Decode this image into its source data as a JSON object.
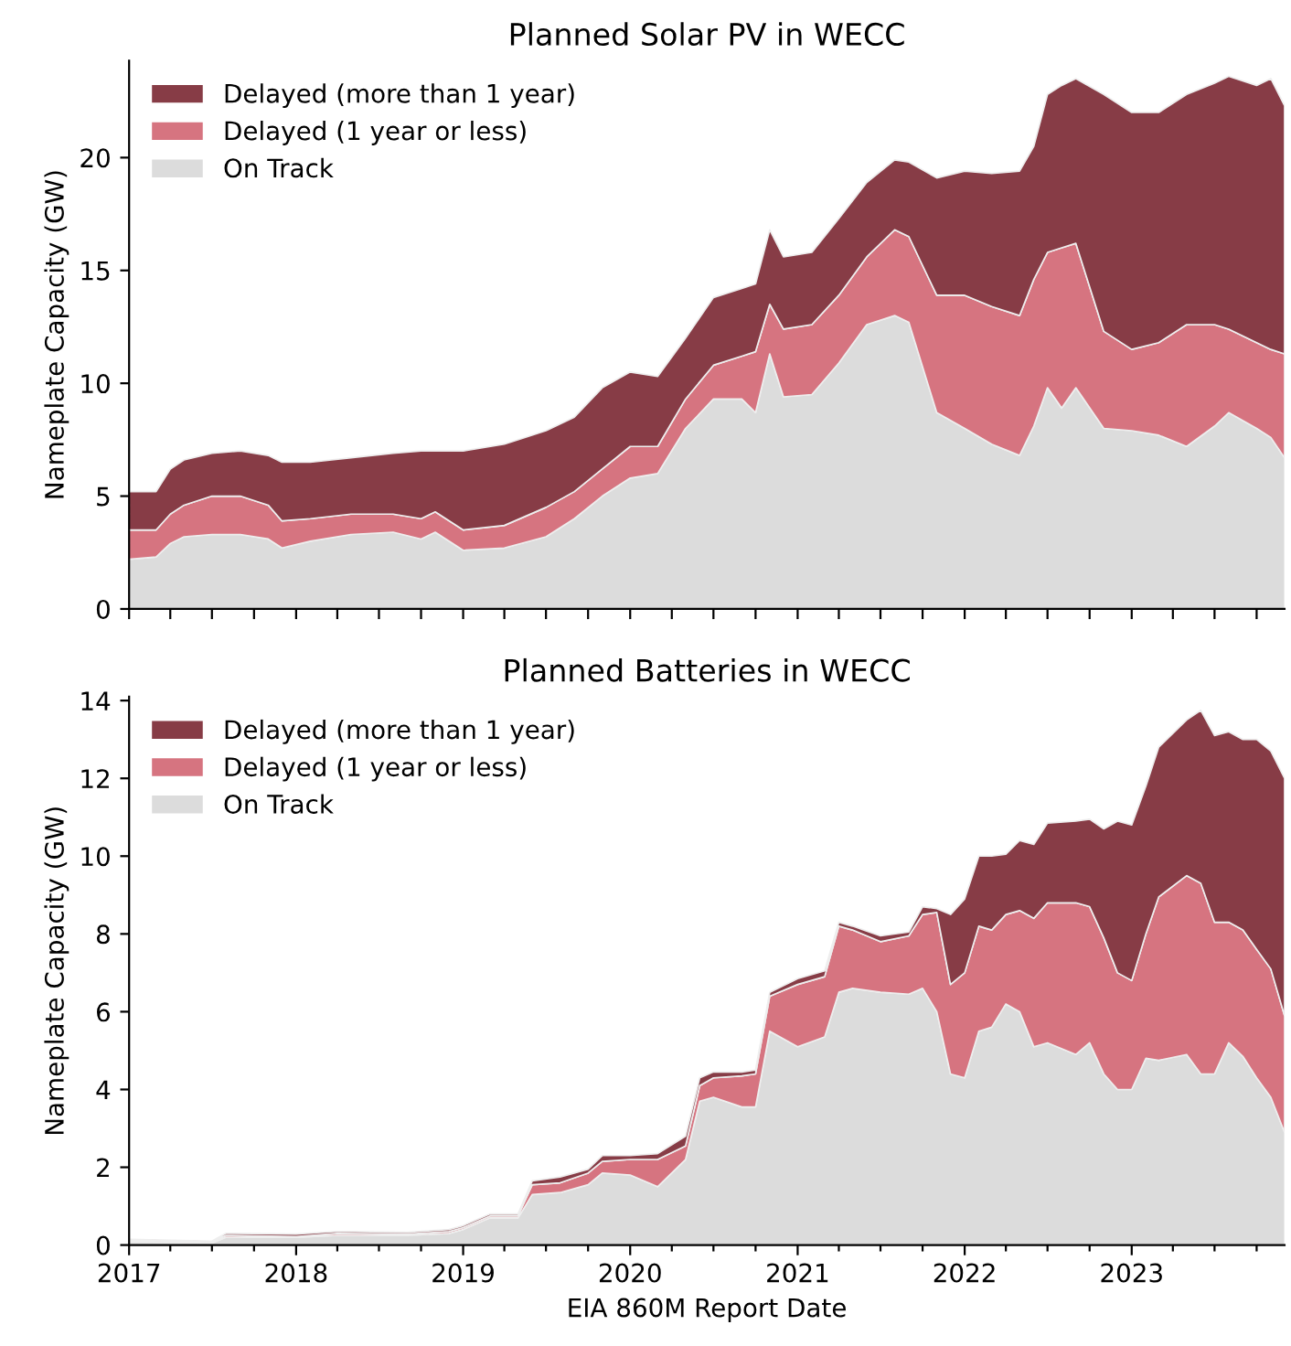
{
  "chart_data": [
    {
      "type": "area",
      "stacked": true,
      "title": "Planned Solar PV in WECC",
      "ylabel": "Nameplate Capacity (GW)",
      "legend": "top left",
      "tick_labels": "y",
      "x": [
        "2017-01",
        "2017-03",
        "2017-04",
        "2017-05",
        "2017-07",
        "2017-09",
        "2017-11",
        "2017-12",
        "2018-02",
        "2018-05",
        "2018-08",
        "2018-10",
        "2018-11",
        "2019-01",
        "2019-04",
        "2019-07",
        "2019-09",
        "2019-11",
        "2020-01",
        "2020-03",
        "2020-05",
        "2020-07",
        "2020-09",
        "2020-10",
        "2020-11",
        "2020-12",
        "2021-02",
        "2021-04",
        "2021-06",
        "2021-08",
        "2021-09",
        "2021-11",
        "2022-01",
        "2022-03",
        "2022-05",
        "2022-06",
        "2022-07",
        "2022-08",
        "2022-09",
        "2022-11",
        "2023-01",
        "2023-03",
        "2023-05",
        "2023-07",
        "2023-08",
        "2023-10",
        "2023-11",
        "2023-12"
      ],
      "series": [
        {
          "name": "On Track",
          "color": "#dcdcdc",
          "values": [
            2.2,
            2.3,
            2.9,
            3.2,
            3.3,
            3.3,
            3.1,
            2.7,
            3.0,
            3.3,
            3.4,
            3.1,
            3.4,
            2.6,
            2.7,
            3.2,
            4.0,
            5.0,
            5.8,
            6.0,
            8.0,
            9.3,
            9.3,
            8.7,
            11.3,
            9.4,
            9.5,
            10.9,
            12.6,
            13.0,
            12.7,
            8.7,
            8.0,
            7.3,
            6.8,
            8.1,
            9.8,
            8.9,
            9.8,
            8.0,
            7.9,
            7.7,
            7.2,
            8.1,
            8.7,
            8.0,
            7.6,
            6.7
          ]
        },
        {
          "name": "Delayed (1 year or less)",
          "color": "#d67480",
          "values": [
            1.3,
            1.2,
            1.3,
            1.4,
            1.7,
            1.7,
            1.5,
            1.2,
            1.0,
            0.9,
            0.8,
            0.9,
            0.9,
            0.9,
            1.0,
            1.3,
            1.2,
            1.2,
            1.4,
            1.2,
            1.3,
            1.5,
            1.9,
            2.7,
            2.2,
            3.0,
            3.1,
            3.0,
            3.0,
            3.8,
            3.8,
            5.2,
            5.9,
            6.1,
            6.2,
            6.5,
            6.0,
            7.1,
            6.4,
            4.3,
            3.6,
            4.1,
            5.4,
            4.5,
            3.7,
            3.8,
            3.9,
            4.6
          ]
        },
        {
          "name": "Delayed (more than 1 year)",
          "color": "#873c46",
          "values": [
            1.7,
            1.7,
            2.0,
            2.0,
            1.9,
            2.0,
            2.2,
            2.6,
            2.5,
            2.5,
            2.7,
            3.0,
            2.7,
            3.5,
            3.6,
            3.4,
            3.3,
            3.6,
            3.3,
            3.1,
            2.7,
            3.0,
            3.0,
            3.0,
            3.3,
            3.2,
            3.2,
            3.4,
            3.3,
            3.1,
            3.3,
            5.2,
            5.5,
            5.9,
            6.4,
            5.9,
            7.0,
            7.2,
            7.3,
            10.5,
            10.5,
            10.2,
            10.2,
            10.7,
            11.2,
            11.4,
            12.0,
            11.0
          ]
        }
      ],
      "xlim": [
        "2017-01",
        "2023-12"
      ],
      "xticks": [
        {
          "value": "2017-01",
          "label": null
        },
        {
          "value": "2017-04",
          "label": null
        },
        {
          "value": "2017-07",
          "label": null
        },
        {
          "value": "2017-10",
          "label": null
        },
        {
          "value": "2018-01",
          "label": null
        },
        {
          "value": "2018-04",
          "label": null
        },
        {
          "value": "2018-07",
          "label": null
        },
        {
          "value": "2018-10",
          "label": null
        },
        {
          "value": "2019-01",
          "label": null
        },
        {
          "value": "2019-04",
          "label": null
        },
        {
          "value": "2019-07",
          "label": null
        },
        {
          "value": "2019-10",
          "label": null
        },
        {
          "value": "2020-01",
          "label": null
        },
        {
          "value": "2020-04",
          "label": null
        },
        {
          "value": "2020-07",
          "label": null
        },
        {
          "value": "2020-10",
          "label": null
        },
        {
          "value": "2021-01",
          "label": null
        },
        {
          "value": "2021-04",
          "label": null
        },
        {
          "value": "2021-07",
          "label": null
        },
        {
          "value": "2021-10",
          "label": null
        },
        {
          "value": "2022-01",
          "label": null
        },
        {
          "value": "2022-04",
          "label": null
        },
        {
          "value": "2022-07",
          "label": null
        },
        {
          "value": "2022-10",
          "label": null
        },
        {
          "value": "2023-01",
          "label": null
        },
        {
          "value": "2023-04",
          "label": null
        },
        {
          "value": "2023-07",
          "label": null
        },
        {
          "value": "2023-10",
          "label": null
        }
      ],
      "ylim": [
        0,
        24.3
      ],
      "yticks": [
        0,
        5,
        10,
        15,
        20
      ]
    },
    {
      "type": "area",
      "stacked": true,
      "title": "Planned Batteries in WECC",
      "ylabel": "Nameplate Capacity (GW)",
      "xlabel": "EIA 860M Report Date",
      "legend": "top left",
      "x": [
        "2017-01",
        "2017-07",
        "2017-08",
        "2018-01",
        "2018-04",
        "2018-09",
        "2018-12",
        "2019-01",
        "2019-03",
        "2019-05",
        "2019-06",
        "2019-08",
        "2019-10",
        "2019-11",
        "2020-01",
        "2020-03",
        "2020-05",
        "2020-06",
        "2020-07",
        "2020-09",
        "2020-10",
        "2020-11",
        "2021-01",
        "2021-03",
        "2021-04",
        "2021-05",
        "2021-07",
        "2021-09",
        "2021-10",
        "2021-11",
        "2021-12",
        "2022-01",
        "2022-02",
        "2022-03",
        "2022-04",
        "2022-05",
        "2022-06",
        "2022-07",
        "2022-09",
        "2022-10",
        "2022-11",
        "2022-12",
        "2023-01",
        "2023-02",
        "2023-03",
        "2023-05",
        "2023-06",
        "2023-07",
        "2023-08",
        "2023-09",
        "2023-10",
        "2023-11",
        "2023-12"
      ],
      "series": [
        {
          "name": "On Track",
          "color": "#dcdcdc",
          "values": [
            0.08,
            0.05,
            0.2,
            0.2,
            0.25,
            0.25,
            0.3,
            0.4,
            0.7,
            0.7,
            1.3,
            1.35,
            1.55,
            1.85,
            1.8,
            1.5,
            2.2,
            3.7,
            3.8,
            3.55,
            3.55,
            5.5,
            5.1,
            5.35,
            6.5,
            6.6,
            6.5,
            6.45,
            6.6,
            6.0,
            4.4,
            4.3,
            5.5,
            5.6,
            6.2,
            6.0,
            5.1,
            5.2,
            4.9,
            5.2,
            4.4,
            4.0,
            4.0,
            4.8,
            4.75,
            4.9,
            4.4,
            4.4,
            5.2,
            4.85,
            4.3,
            3.8,
            2.9
          ]
        },
        {
          "name": "Delayed (1 year or less)",
          "color": "#d67480",
          "values": [
            0.04,
            0.03,
            0.05,
            0.02,
            0.05,
            0.03,
            0.05,
            0.05,
            0.05,
            0.05,
            0.25,
            0.25,
            0.3,
            0.3,
            0.4,
            0.7,
            0.35,
            0.4,
            0.5,
            0.8,
            0.85,
            0.9,
            1.6,
            1.55,
            1.7,
            1.5,
            1.3,
            1.5,
            1.9,
            2.55,
            2.3,
            2.7,
            2.7,
            2.5,
            2.3,
            2.6,
            3.3,
            3.6,
            3.9,
            3.5,
            3.5,
            3.0,
            2.8,
            3.2,
            4.2,
            4.6,
            4.9,
            3.9,
            3.1,
            3.25,
            3.3,
            3.3,
            3.0
          ]
        },
        {
          "name": "Delayed (more than 1 year)",
          "color": "#873c46",
          "values": [
            0.03,
            0.02,
            0.05,
            0.06,
            0.05,
            0.05,
            0.05,
            0.05,
            0.05,
            0.05,
            0.1,
            0.15,
            0.1,
            0.15,
            0.1,
            0.15,
            0.25,
            0.2,
            0.15,
            0.1,
            0.1,
            0.1,
            0.15,
            0.15,
            0.1,
            0.1,
            0.15,
            0.1,
            0.2,
            0.1,
            1.8,
            1.9,
            1.8,
            1.9,
            1.55,
            1.8,
            1.9,
            2.05,
            2.1,
            2.25,
            2.8,
            3.9,
            4.0,
            3.8,
            3.85,
            4.0,
            4.45,
            4.8,
            4.9,
            4.9,
            5.4,
            5.6,
            6.1
          ]
        }
      ],
      "xlim": [
        "2017-01",
        "2023-12"
      ],
      "xticks": [
        {
          "value": "2017-01",
          "label": "2017"
        },
        {
          "value": "2017-04",
          "label": null
        },
        {
          "value": "2017-07",
          "label": null
        },
        {
          "value": "2017-10",
          "label": null
        },
        {
          "value": "2018-01",
          "label": "2018"
        },
        {
          "value": "2018-04",
          "label": null
        },
        {
          "value": "2018-07",
          "label": null
        },
        {
          "value": "2018-10",
          "label": null
        },
        {
          "value": "2019-01",
          "label": "2019"
        },
        {
          "value": "2019-04",
          "label": null
        },
        {
          "value": "2019-07",
          "label": null
        },
        {
          "value": "2019-10",
          "label": null
        },
        {
          "value": "2020-01",
          "label": "2020"
        },
        {
          "value": "2020-04",
          "label": null
        },
        {
          "value": "2020-07",
          "label": null
        },
        {
          "value": "2020-10",
          "label": null
        },
        {
          "value": "2021-01",
          "label": "2021"
        },
        {
          "value": "2021-04",
          "label": null
        },
        {
          "value": "2021-07",
          "label": null
        },
        {
          "value": "2021-10",
          "label": null
        },
        {
          "value": "2022-01",
          "label": "2022"
        },
        {
          "value": "2022-04",
          "label": null
        },
        {
          "value": "2022-07",
          "label": null
        },
        {
          "value": "2022-10",
          "label": null
        },
        {
          "value": "2023-01",
          "label": "2023"
        },
        {
          "value": "2023-04",
          "label": null
        },
        {
          "value": "2023-07",
          "label": null
        },
        {
          "value": "2023-10",
          "label": null
        }
      ],
      "ylim": [
        0,
        14.1
      ],
      "yticks": [
        0,
        2,
        4,
        6,
        8,
        10,
        12,
        14
      ]
    }
  ]
}
